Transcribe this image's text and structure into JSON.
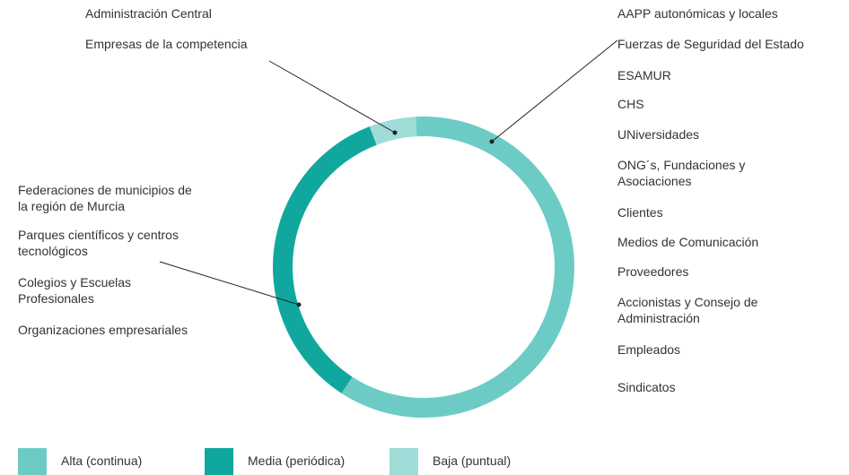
{
  "chart_data": {
    "type": "donut",
    "categories": [
      "Alta (continua)",
      "Media (periódica)",
      "Baja (puntual)"
    ],
    "values": [
      60,
      35,
      5
    ],
    "colors": [
      "#6dcbc6",
      "#10a89e",
      "#a0dcd8"
    ],
    "annotations": [
      [
        "AAPP autonómicas y locales",
        "Fuerzas de Seguridad del Estado",
        "ESAMUR",
        "CHS",
        "UNiversidades",
        "ONG´s, Fundaciones y\nAsociaciones",
        "Clientes",
        "Medios de Comunicación",
        "Proveedores",
        "Accionistas y Consejo de\nAdministración",
        "Empleados",
        "Sindicatos"
      ],
      [
        "Federaciones de municipios de\nla región de Murcia",
        "Parques científicos y centros\ntecnológicos",
        "Colegios y Escuelas\nProfesionales",
        "Organizaciones empresariales"
      ],
      [
        "Administración Central",
        "Empresas de la competencia"
      ]
    ]
  }
}
